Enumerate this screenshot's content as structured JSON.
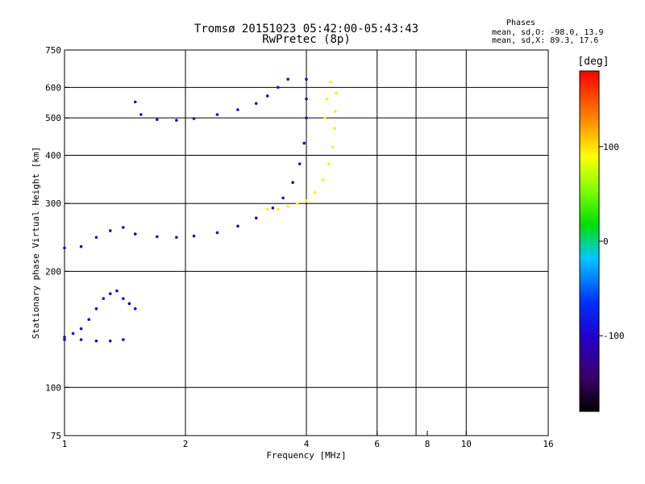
{
  "chart_data": {
    "type": "scatter",
    "title": "Tromsø 20151023 05:42:00-05:43:43",
    "subtitle": "RwPretec (8p)",
    "xlabel": "Frequency [MHz]",
    "ylabel": "Stationary phase Virtual Height [km]",
    "x_scale": "log",
    "y_scale": "log",
    "xlim": [
      1,
      16
    ],
    "ylim": [
      75,
      750
    ],
    "x_ticks": [
      1,
      2,
      4,
      6,
      8,
      10,
      16
    ],
    "x_tick_labels": [
      "1",
      "2",
      "4",
      "6",
      "8",
      "10",
      "16"
    ],
    "x_grid": [
      2,
      4,
      6,
      7.5,
      10
    ],
    "y_ticks": [
      75,
      100,
      200,
      300,
      400,
      500,
      600,
      750
    ],
    "y_tick_labels": [
      "75",
      "100",
      "200",
      "300",
      "400",
      "500",
      "600",
      "750"
    ],
    "y_grid": [
      100,
      200,
      300,
      400,
      500,
      600
    ],
    "grid": true,
    "stats": {
      "heading": "Phases",
      "line_o": "mean, sd,O: -98.0, 13.9",
      "line_x": "mean, sd,X:  89.3, 17.6"
    },
    "colorbar": {
      "label": "[deg]",
      "range": [
        -180,
        180
      ],
      "ticks": [
        100,
        0,
        -100
      ],
      "tick_labels": [
        "100",
        "0",
        "-100"
      ],
      "colormap": "rainbow: black-purple-blue-cyan-green-yellow-orange-red"
    },
    "series": [
      {
        "trace": "O-mode low F1/E trace",
        "phase_deg": -100,
        "points": [
          [
            1.0,
            135
          ],
          [
            1.05,
            138
          ],
          [
            1.1,
            142
          ],
          [
            1.15,
            150
          ],
          [
            1.2,
            160
          ],
          [
            1.25,
            170
          ],
          [
            1.3,
            175
          ],
          [
            1.35,
            178
          ],
          [
            1.4,
            170
          ],
          [
            1.45,
            165
          ],
          [
            1.5,
            160
          ],
          [
            1.0,
            133
          ],
          [
            1.1,
            133
          ],
          [
            1.2,
            132
          ],
          [
            1.3,
            132
          ],
          [
            1.4,
            133
          ]
        ]
      },
      {
        "trace": "O-mode F2 trace",
        "phase_deg": -105,
        "points": [
          [
            1.0,
            230
          ],
          [
            1.1,
            232
          ],
          [
            1.2,
            245
          ],
          [
            1.3,
            255
          ],
          [
            1.4,
            260
          ],
          [
            1.5,
            250
          ],
          [
            1.7,
            246
          ],
          [
            1.9,
            245
          ],
          [
            2.1,
            247
          ],
          [
            2.4,
            252
          ],
          [
            2.7,
            262
          ],
          [
            3.0,
            275
          ],
          [
            3.3,
            292
          ],
          [
            3.5,
            310
          ],
          [
            3.7,
            340
          ],
          [
            3.85,
            380
          ],
          [
            3.95,
            430
          ],
          [
            4.0,
            500
          ],
          [
            4.0,
            560
          ],
          [
            4.0,
            630
          ]
        ]
      },
      {
        "trace": "O-mode upper trace",
        "phase_deg": -95,
        "points": [
          [
            1.5,
            550
          ],
          [
            1.55,
            510
          ],
          [
            1.7,
            495
          ],
          [
            1.9,
            493
          ],
          [
            2.1,
            498
          ],
          [
            2.4,
            510
          ],
          [
            2.7,
            525
          ],
          [
            3.0,
            545
          ],
          [
            3.2,
            570
          ],
          [
            3.4,
            600
          ],
          [
            3.6,
            630
          ]
        ]
      },
      {
        "trace": "X-mode trace",
        "phase_deg": 95,
        "points": [
          [
            3.2,
            290
          ],
          [
            3.4,
            290
          ],
          [
            3.6,
            295
          ],
          [
            3.8,
            300
          ],
          [
            4.0,
            305
          ],
          [
            4.2,
            320
          ],
          [
            4.4,
            345
          ],
          [
            4.55,
            380
          ],
          [
            4.65,
            420
          ],
          [
            4.7,
            470
          ],
          [
            4.72,
            520
          ],
          [
            4.75,
            580
          ],
          [
            4.6,
            620
          ],
          [
            4.5,
            560
          ],
          [
            4.45,
            500
          ]
        ]
      }
    ]
  }
}
